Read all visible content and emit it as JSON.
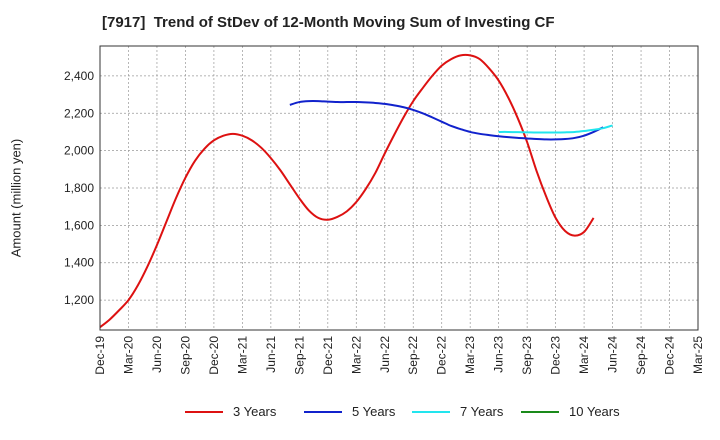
{
  "chart_data": {
    "type": "line",
    "title": "[7917]  Trend of StDev of 12-Month Moving Sum of Investing CF",
    "xlabel": "",
    "ylabel": "Amount (million yen)",
    "x_tick_labels": [
      "Dec-19",
      "Mar-20",
      "Jun-20",
      "Sep-20",
      "Dec-20",
      "Mar-21",
      "Jun-21",
      "Sep-21",
      "Dec-21",
      "Mar-22",
      "Jun-22",
      "Sep-22",
      "Dec-22",
      "Mar-23",
      "Jun-23",
      "Sep-23",
      "Dec-23",
      "Mar-24",
      "Jun-24",
      "Sep-24",
      "Dec-24",
      "Mar-25"
    ],
    "y_ticks": [
      1200,
      1400,
      1600,
      1800,
      2000,
      2200,
      2400
    ],
    "y_tick_labels": [
      "1,200",
      "1,400",
      "1,600",
      "1,800",
      "2,000",
      "2,200",
      "2,400"
    ],
    "ylim": [
      1040,
      2560
    ],
    "grid": true,
    "legend_position": "bottom",
    "series": [
      {
        "name": "3 Years",
        "color": "#dd1111",
        "points": [
          [
            "2019-12",
            1055
          ],
          [
            "2020-01",
            1095
          ],
          [
            "2020-02",
            1145
          ],
          [
            "2020-03",
            1200
          ],
          [
            "2020-04",
            1280
          ],
          [
            "2020-05",
            1380
          ],
          [
            "2020-06",
            1495
          ],
          [
            "2020-07",
            1620
          ],
          [
            "2020-08",
            1745
          ],
          [
            "2020-09",
            1855
          ],
          [
            "2020-10",
            1945
          ],
          [
            "2020-11",
            2010
          ],
          [
            "2020-12",
            2055
          ],
          [
            "2021-01",
            2080
          ],
          [
            "2021-02",
            2090
          ],
          [
            "2021-03",
            2080
          ],
          [
            "2021-04",
            2055
          ],
          [
            "2021-05",
            2015
          ],
          [
            "2021-06",
            1960
          ],
          [
            "2021-07",
            1895
          ],
          [
            "2021-08",
            1820
          ],
          [
            "2021-09",
            1745
          ],
          [
            "2021-10",
            1680
          ],
          [
            "2021-11",
            1640
          ],
          [
            "2021-12",
            1630
          ],
          [
            "2022-01",
            1645
          ],
          [
            "2022-02",
            1675
          ],
          [
            "2022-03",
            1725
          ],
          [
            "2022-04",
            1795
          ],
          [
            "2022-05",
            1880
          ],
          [
            "2022-06",
            1985
          ],
          [
            "2022-07",
            2085
          ],
          [
            "2022-08",
            2180
          ],
          [
            "2022-09",
            2265
          ],
          [
            "2022-10",
            2335
          ],
          [
            "2022-11",
            2400
          ],
          [
            "2022-12",
            2455
          ],
          [
            "2023-01",
            2490
          ],
          [
            "2023-02",
            2510
          ],
          [
            "2023-03",
            2510
          ],
          [
            "2023-04",
            2490
          ],
          [
            "2023-05",
            2440
          ],
          [
            "2023-06",
            2375
          ],
          [
            "2023-07",
            2285
          ],
          [
            "2023-08",
            2175
          ],
          [
            "2023-09",
            2045
          ],
          [
            "2023-10",
            1890
          ],
          [
            "2023-11",
            1755
          ],
          [
            "2023-12",
            1640
          ],
          [
            "2024-01",
            1570
          ],
          [
            "2024-02",
            1545
          ],
          [
            "2024-03",
            1565
          ],
          [
            "2024-04",
            1640
          ]
        ]
      },
      {
        "name": "5 Years",
        "color": "#1122cc",
        "points": [
          [
            "2021-08",
            2245
          ],
          [
            "2021-09",
            2260
          ],
          [
            "2021-10",
            2265
          ],
          [
            "2021-11",
            2265
          ],
          [
            "2021-12",
            2262
          ],
          [
            "2022-01",
            2260
          ],
          [
            "2022-02",
            2260
          ],
          [
            "2022-03",
            2260
          ],
          [
            "2022-04",
            2258
          ],
          [
            "2022-05",
            2255
          ],
          [
            "2022-06",
            2250
          ],
          [
            "2022-07",
            2242
          ],
          [
            "2022-08",
            2232
          ],
          [
            "2022-09",
            2218
          ],
          [
            "2022-10",
            2200
          ],
          [
            "2022-11",
            2178
          ],
          [
            "2022-12",
            2155
          ],
          [
            "2023-01",
            2132
          ],
          [
            "2023-02",
            2115
          ],
          [
            "2023-03",
            2100
          ],
          [
            "2023-04",
            2090
          ],
          [
            "2023-05",
            2083
          ],
          [
            "2023-06",
            2077
          ],
          [
            "2023-07",
            2072
          ],
          [
            "2023-08",
            2068
          ],
          [
            "2023-09",
            2065
          ],
          [
            "2023-10",
            2062
          ],
          [
            "2023-11",
            2060
          ],
          [
            "2023-12",
            2060
          ],
          [
            "2024-01",
            2062
          ],
          [
            "2024-02",
            2068
          ],
          [
            "2024-03",
            2080
          ],
          [
            "2024-04",
            2100
          ],
          [
            "2024-05",
            2125
          ]
        ]
      },
      {
        "name": "7 Years",
        "color": "#22e5ee",
        "points": [
          [
            "2023-06",
            2100
          ],
          [
            "2023-07",
            2100
          ],
          [
            "2023-08",
            2099
          ],
          [
            "2023-09",
            2098
          ],
          [
            "2023-10",
            2097
          ],
          [
            "2023-11",
            2097
          ],
          [
            "2023-12",
            2097
          ],
          [
            "2024-01",
            2098
          ],
          [
            "2024-02",
            2100
          ],
          [
            "2024-03",
            2105
          ],
          [
            "2024-04",
            2112
          ],
          [
            "2024-05",
            2120
          ],
          [
            "2024-06",
            2135
          ]
        ]
      },
      {
        "name": "10 Years",
        "color": "#1a8a1a",
        "points": []
      }
    ]
  }
}
